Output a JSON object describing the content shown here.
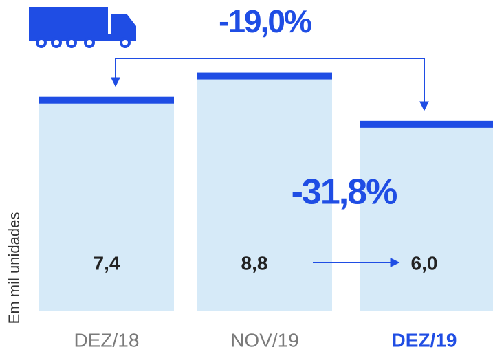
{
  "chart_data": {
    "type": "bar",
    "y_axis_label": "Em mil unidades",
    "categories": [
      "DEZ/18",
      "NOV/19",
      "DEZ/19"
    ],
    "values": [
      7.4,
      8.8,
      6.0
    ],
    "value_labels": [
      "7,4",
      "8,8",
      "6,0"
    ],
    "color": "#d6eaf8",
    "cap_color": "#1f4de4",
    "ylim": [
      -5,
      9.5
    ],
    "annotations": [
      "-19,0%",
      "-31,8%"
    ]
  }
}
